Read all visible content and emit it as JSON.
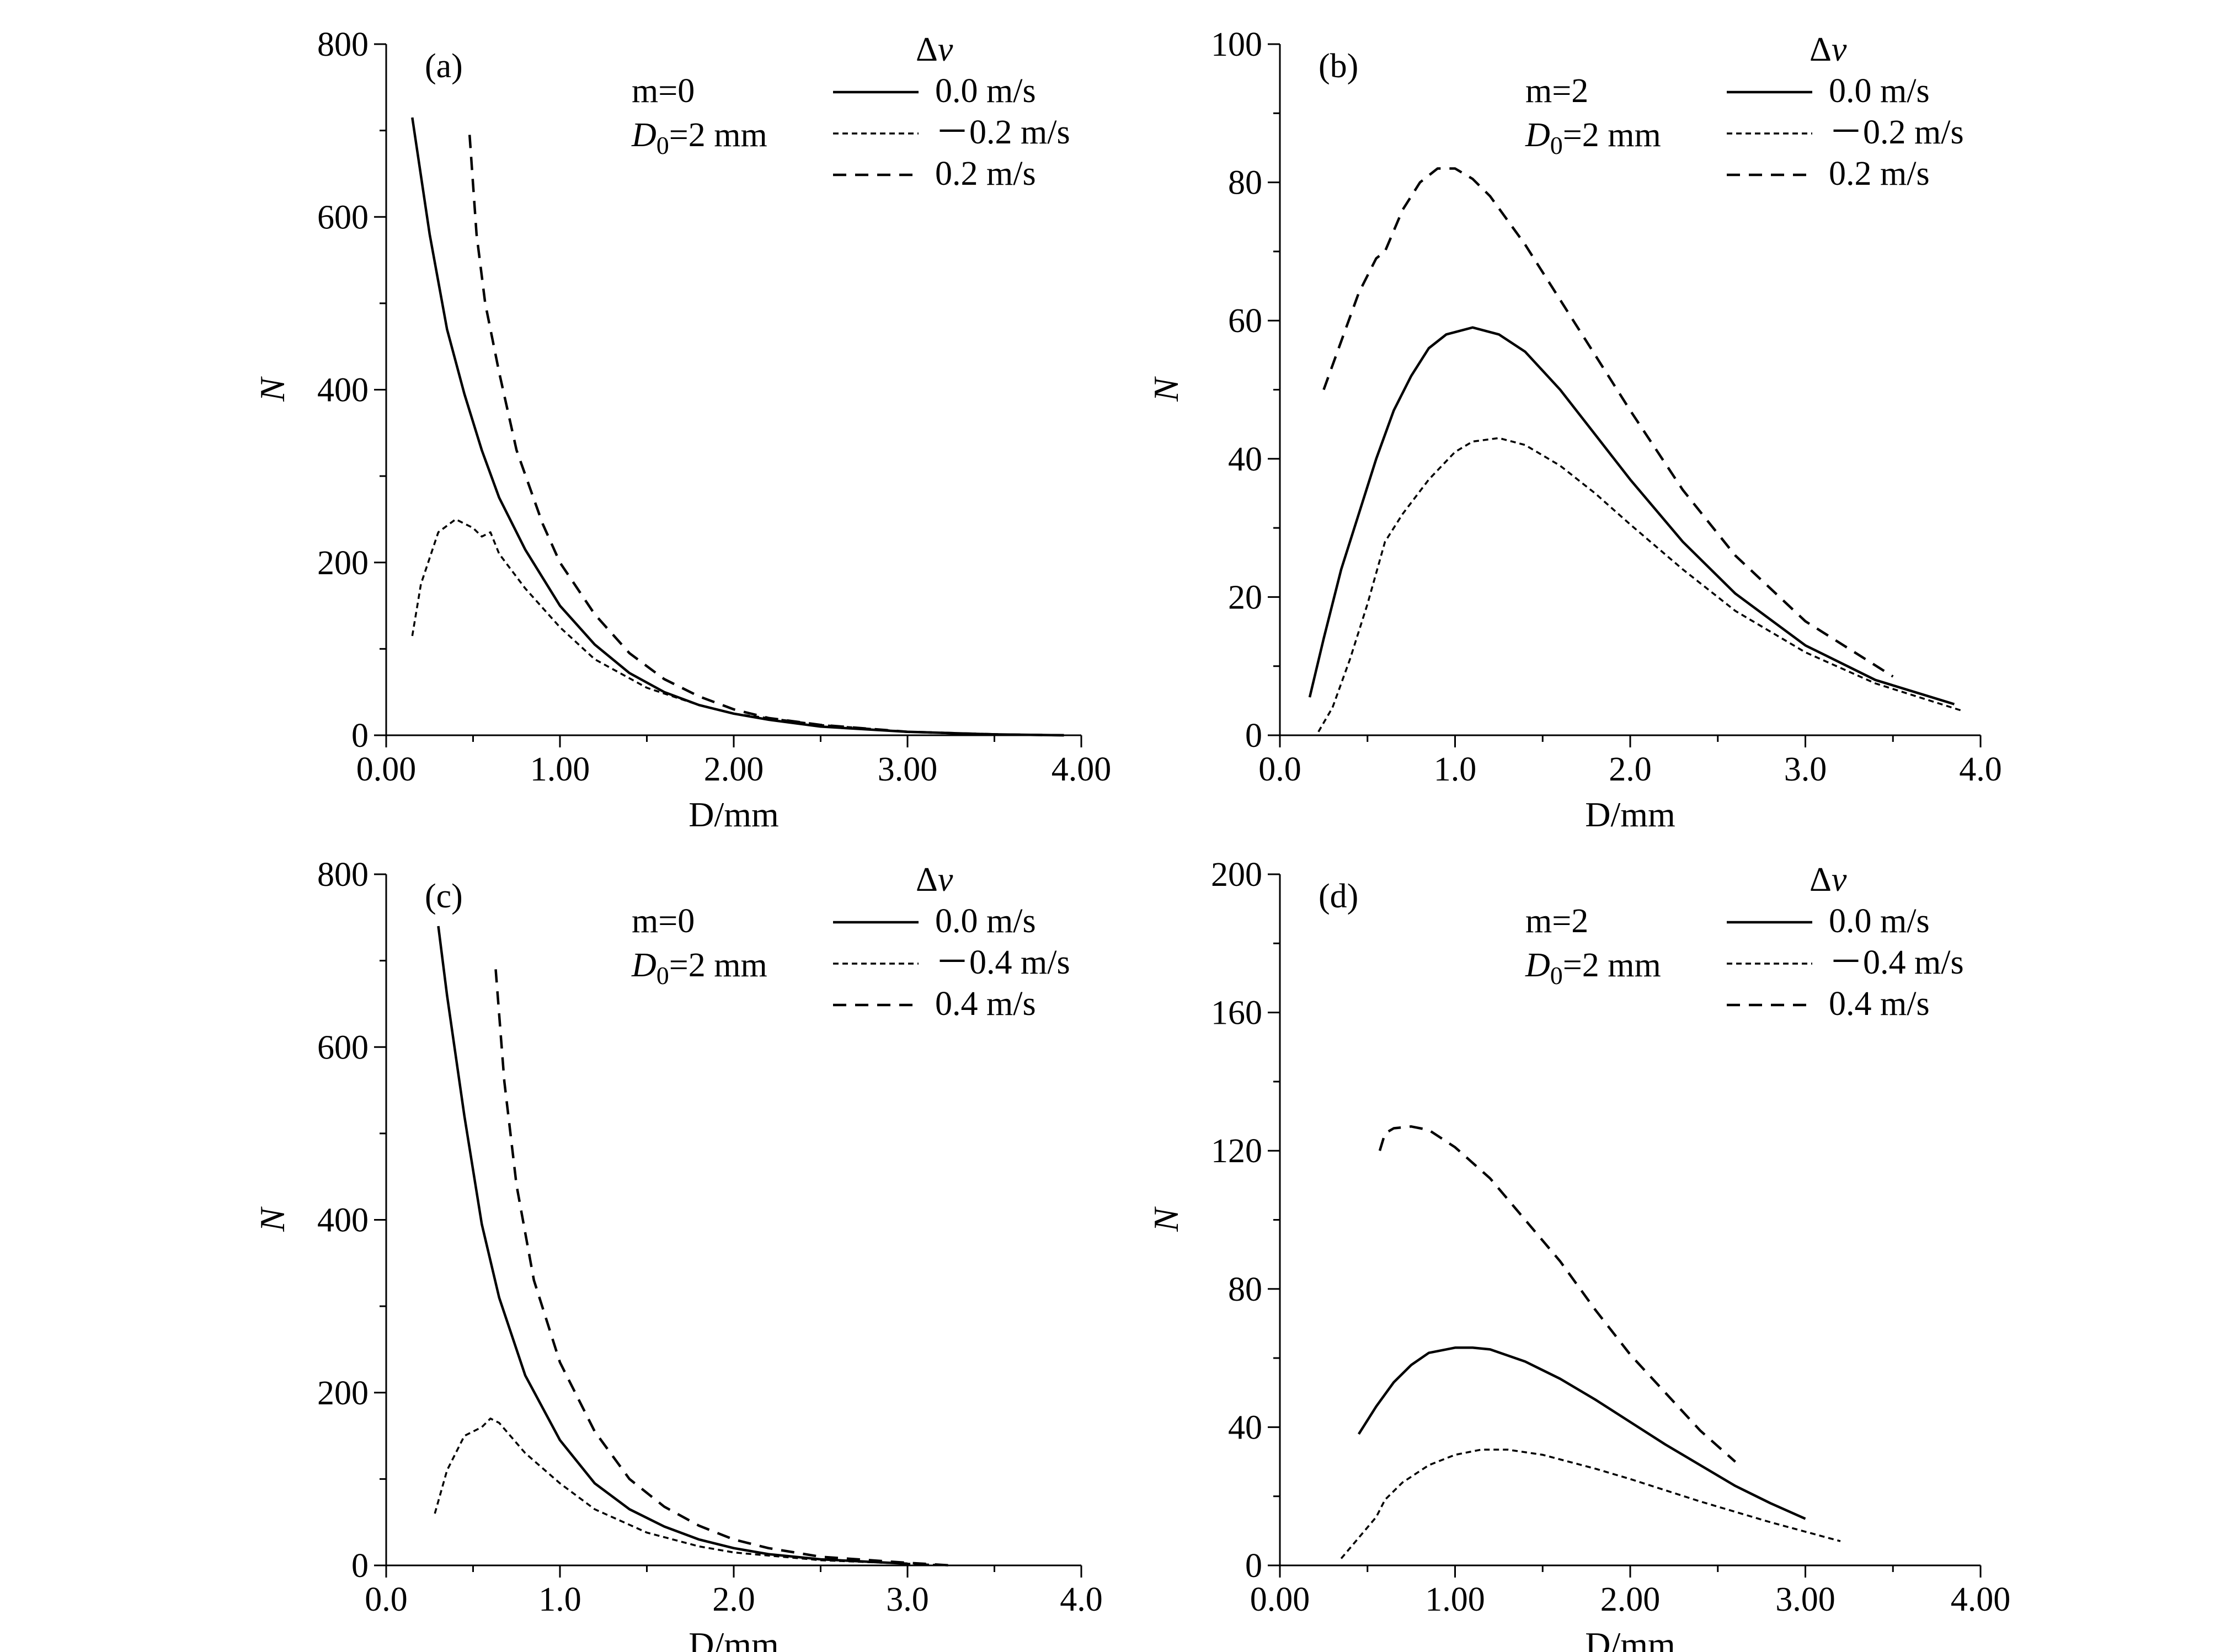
{
  "chart_data": [
    {
      "type": "line",
      "panel_label": "(a)",
      "xlabel": "D/mm",
      "ylabel": "N",
      "xlim": [
        0,
        4
      ],
      "ylim": [
        0,
        800
      ],
      "xticks": [
        "0.00",
        "1.00",
        "2.00",
        "3.00",
        "4.00"
      ],
      "xtick_values": [
        0,
        1,
        2,
        3,
        4
      ],
      "yticks": [
        "0",
        "200",
        "400",
        "600",
        "800"
      ],
      "ytick_values": [
        0,
        200,
        400,
        600,
        800
      ],
      "params": {
        "m": "m=0",
        "d0_main": "D",
        "d0_sub": "0",
        "d0_rest": "=2 mm"
      },
      "legend_title": "Δv",
      "series": [
        {
          "name": "0.0 m/s",
          "style": "solid",
          "x": [
            0.15,
            0.25,
            0.35,
            0.45,
            0.55,
            0.65,
            0.8,
            1.0,
            1.2,
            1.4,
            1.6,
            1.8,
            2.0,
            2.2,
            2.5,
            3.0,
            3.5,
            3.9
          ],
          "y": [
            715,
            580,
            470,
            395,
            330,
            275,
            215,
            150,
            105,
            72,
            50,
            35,
            25,
            18,
            10,
            4,
            1,
            0
          ]
        },
        {
          "name": "－0.2 m/s",
          "style": "dotted",
          "x": [
            0.15,
            0.2,
            0.3,
            0.4,
            0.5,
            0.55,
            0.6,
            0.65,
            0.8,
            1.0,
            1.2,
            1.5,
            1.8,
            2.0,
            2.5,
            3.0,
            3.5,
            3.9
          ],
          "y": [
            115,
            175,
            235,
            250,
            240,
            230,
            235,
            210,
            170,
            125,
            88,
            55,
            35,
            25,
            12,
            4,
            1,
            0
          ]
        },
        {
          "name": "0.2 m/s",
          "style": "dashed",
          "x": [
            0.48,
            0.52,
            0.57,
            0.65,
            0.75,
            0.9,
            1.0,
            1.2,
            1.4,
            1.6,
            1.8,
            2.0,
            2.2,
            2.5,
            3.0,
            3.5,
            3.9
          ],
          "y": [
            695,
            580,
            500,
            420,
            330,
            245,
            200,
            140,
            95,
            65,
            45,
            30,
            20,
            12,
            4,
            1,
            0
          ]
        }
      ]
    },
    {
      "type": "line",
      "panel_label": "(b)",
      "xlabel": "D/mm",
      "ylabel": "N",
      "xlim": [
        0,
        4
      ],
      "ylim": [
        0,
        100
      ],
      "xticks": [
        "0.0",
        "1.0",
        "2.0",
        "3.0",
        "4.0"
      ],
      "xtick_values": [
        0,
        1,
        2,
        3,
        4
      ],
      "yticks": [
        "0",
        "20",
        "40",
        "60",
        "80",
        "100"
      ],
      "ytick_values": [
        0,
        20,
        40,
        60,
        80,
        100
      ],
      "params": {
        "m": "m=2",
        "d0_main": "D",
        "d0_sub": "0",
        "d0_rest": "=2 mm"
      },
      "legend_title": "Δv",
      "series": [
        {
          "name": "0.0 m/s",
          "style": "solid",
          "x": [
            0.17,
            0.25,
            0.35,
            0.45,
            0.55,
            0.65,
            0.75,
            0.85,
            0.95,
            1.1,
            1.25,
            1.4,
            1.6,
            1.8,
            2.0,
            2.3,
            2.6,
            3.0,
            3.4,
            3.85
          ],
          "y": [
            5.5,
            14,
            24,
            32,
            40,
            47,
            52,
            56,
            58,
            59,
            58,
            55.5,
            50,
            43.5,
            37,
            28,
            20.5,
            13,
            8,
            4.5
          ]
        },
        {
          "name": "－0.2 m/s",
          "style": "dotted",
          "x": [
            0.22,
            0.3,
            0.4,
            0.5,
            0.6,
            0.7,
            0.85,
            1.0,
            1.1,
            1.25,
            1.4,
            1.6,
            1.8,
            2.0,
            2.3,
            2.6,
            3.0,
            3.4,
            3.9
          ],
          "y": [
            0.5,
            4,
            11,
            19,
            28,
            32,
            37,
            41,
            42.5,
            43,
            42,
            39,
            35,
            30.5,
            24,
            18,
            12,
            7.5,
            3.5
          ]
        },
        {
          "name": "0.2 m/s",
          "style": "dashed",
          "x": [
            0.25,
            0.35,
            0.45,
            0.55,
            0.6,
            0.7,
            0.8,
            0.9,
            1.0,
            1.1,
            1.2,
            1.4,
            1.6,
            1.8,
            2.0,
            2.3,
            2.6,
            3.0,
            3.5
          ],
          "y": [
            50,
            57,
            64,
            69,
            70,
            76,
            80,
            82,
            82,
            80.5,
            78,
            71,
            63,
            55,
            47,
            35.5,
            26,
            16.5,
            8.5
          ]
        }
      ]
    },
    {
      "type": "line",
      "panel_label": "(c)",
      "xlabel": "D/mm",
      "ylabel": "N",
      "xlim": [
        0,
        4
      ],
      "ylim": [
        0,
        800
      ],
      "xticks": [
        "0.0",
        "1.0",
        "2.0",
        "3.0",
        "4.0"
      ],
      "xtick_values": [
        0,
        1,
        2,
        3,
        4
      ],
      "yticks": [
        "0",
        "200",
        "400",
        "600",
        "800"
      ],
      "ytick_values": [
        0,
        200,
        400,
        600,
        800
      ],
      "params": {
        "m": "m=0",
        "d0_main": "D",
        "d0_sub": "0",
        "d0_rest": "=2 mm"
      },
      "legend_title": "Δv",
      "series": [
        {
          "name": "0.0 m/s",
          "style": "solid",
          "x": [
            0.3,
            0.35,
            0.45,
            0.55,
            0.65,
            0.8,
            1.0,
            1.2,
            1.4,
            1.6,
            1.8,
            2.0,
            2.2,
            2.5,
            3.0
          ],
          "y": [
            740,
            660,
            520,
            395,
            310,
            220,
            145,
            95,
            65,
            45,
            30,
            20,
            13,
            7,
            2
          ]
        },
        {
          "name": "－0.4 m/s",
          "style": "dotted",
          "x": [
            0.28,
            0.35,
            0.45,
            0.55,
            0.6,
            0.65,
            0.8,
            1.0,
            1.2,
            1.5,
            1.8,
            2.0,
            2.5,
            3.0,
            3.25
          ],
          "y": [
            60,
            110,
            150,
            160,
            170,
            165,
            130,
            95,
            65,
            38,
            22,
            15,
            6,
            2,
            0
          ]
        },
        {
          "name": "0.4 m/s",
          "style": "dashed",
          "x": [
            0.63,
            0.68,
            0.75,
            0.85,
            1.0,
            1.2,
            1.4,
            1.6,
            1.8,
            2.0,
            2.2,
            2.5,
            3.0,
            3.25
          ],
          "y": [
            690,
            560,
            440,
            330,
            235,
            155,
            100,
            68,
            46,
            30,
            20,
            10,
            3,
            0
          ]
        }
      ]
    },
    {
      "type": "line",
      "panel_label": "(d)",
      "xlabel": "D/mm",
      "ylabel": "N",
      "xlim": [
        0,
        4
      ],
      "ylim": [
        0,
        200
      ],
      "xticks": [
        "0.00",
        "1.00",
        "2.00",
        "3.00",
        "4.00"
      ],
      "xtick_values": [
        0,
        1,
        2,
        3,
        4
      ],
      "yticks": [
        "0",
        "40",
        "80",
        "120",
        "160",
        "200"
      ],
      "ytick_values": [
        0,
        40,
        80,
        120,
        160,
        200
      ],
      "params": {
        "m": "m=2",
        "d0_main": "D",
        "d0_sub": "0",
        "d0_rest": "=2 mm"
      },
      "legend_title": "Δv",
      "series": [
        {
          "name": "0.0 m/s",
          "style": "solid",
          "x": [
            0.45,
            0.55,
            0.65,
            0.75,
            0.85,
            1.0,
            1.1,
            1.2,
            1.4,
            1.6,
            1.8,
            2.0,
            2.2,
            2.4,
            2.6,
            2.8,
            3.0
          ],
          "y": [
            38,
            46,
            53,
            58,
            61.5,
            63,
            63,
            62.5,
            59,
            54,
            48,
            41.5,
            35,
            29,
            23,
            18,
            13.5
          ]
        },
        {
          "name": "－0.4 m/s",
          "style": "dotted",
          "x": [
            0.35,
            0.45,
            0.55,
            0.6,
            0.7,
            0.85,
            1.0,
            1.15,
            1.3,
            1.5,
            1.8,
            2.0,
            2.4,
            2.8,
            3.2
          ],
          "y": [
            2,
            8,
            14,
            19,
            24,
            29,
            32,
            33.5,
            33.5,
            32,
            28,
            25,
            18.5,
            12.5,
            7
          ]
        },
        {
          "name": "0.4 m/s",
          "style": "dashed",
          "x": [
            0.57,
            0.6,
            0.65,
            0.75,
            0.85,
            1.0,
            1.2,
            1.4,
            1.6,
            1.8,
            2.0,
            2.2,
            2.4,
            2.6
          ],
          "y": [
            120,
            125,
            126.5,
            127,
            126,
            121,
            112,
            100,
            88,
            74,
            61,
            50,
            39,
            30
          ]
        }
      ]
    }
  ]
}
